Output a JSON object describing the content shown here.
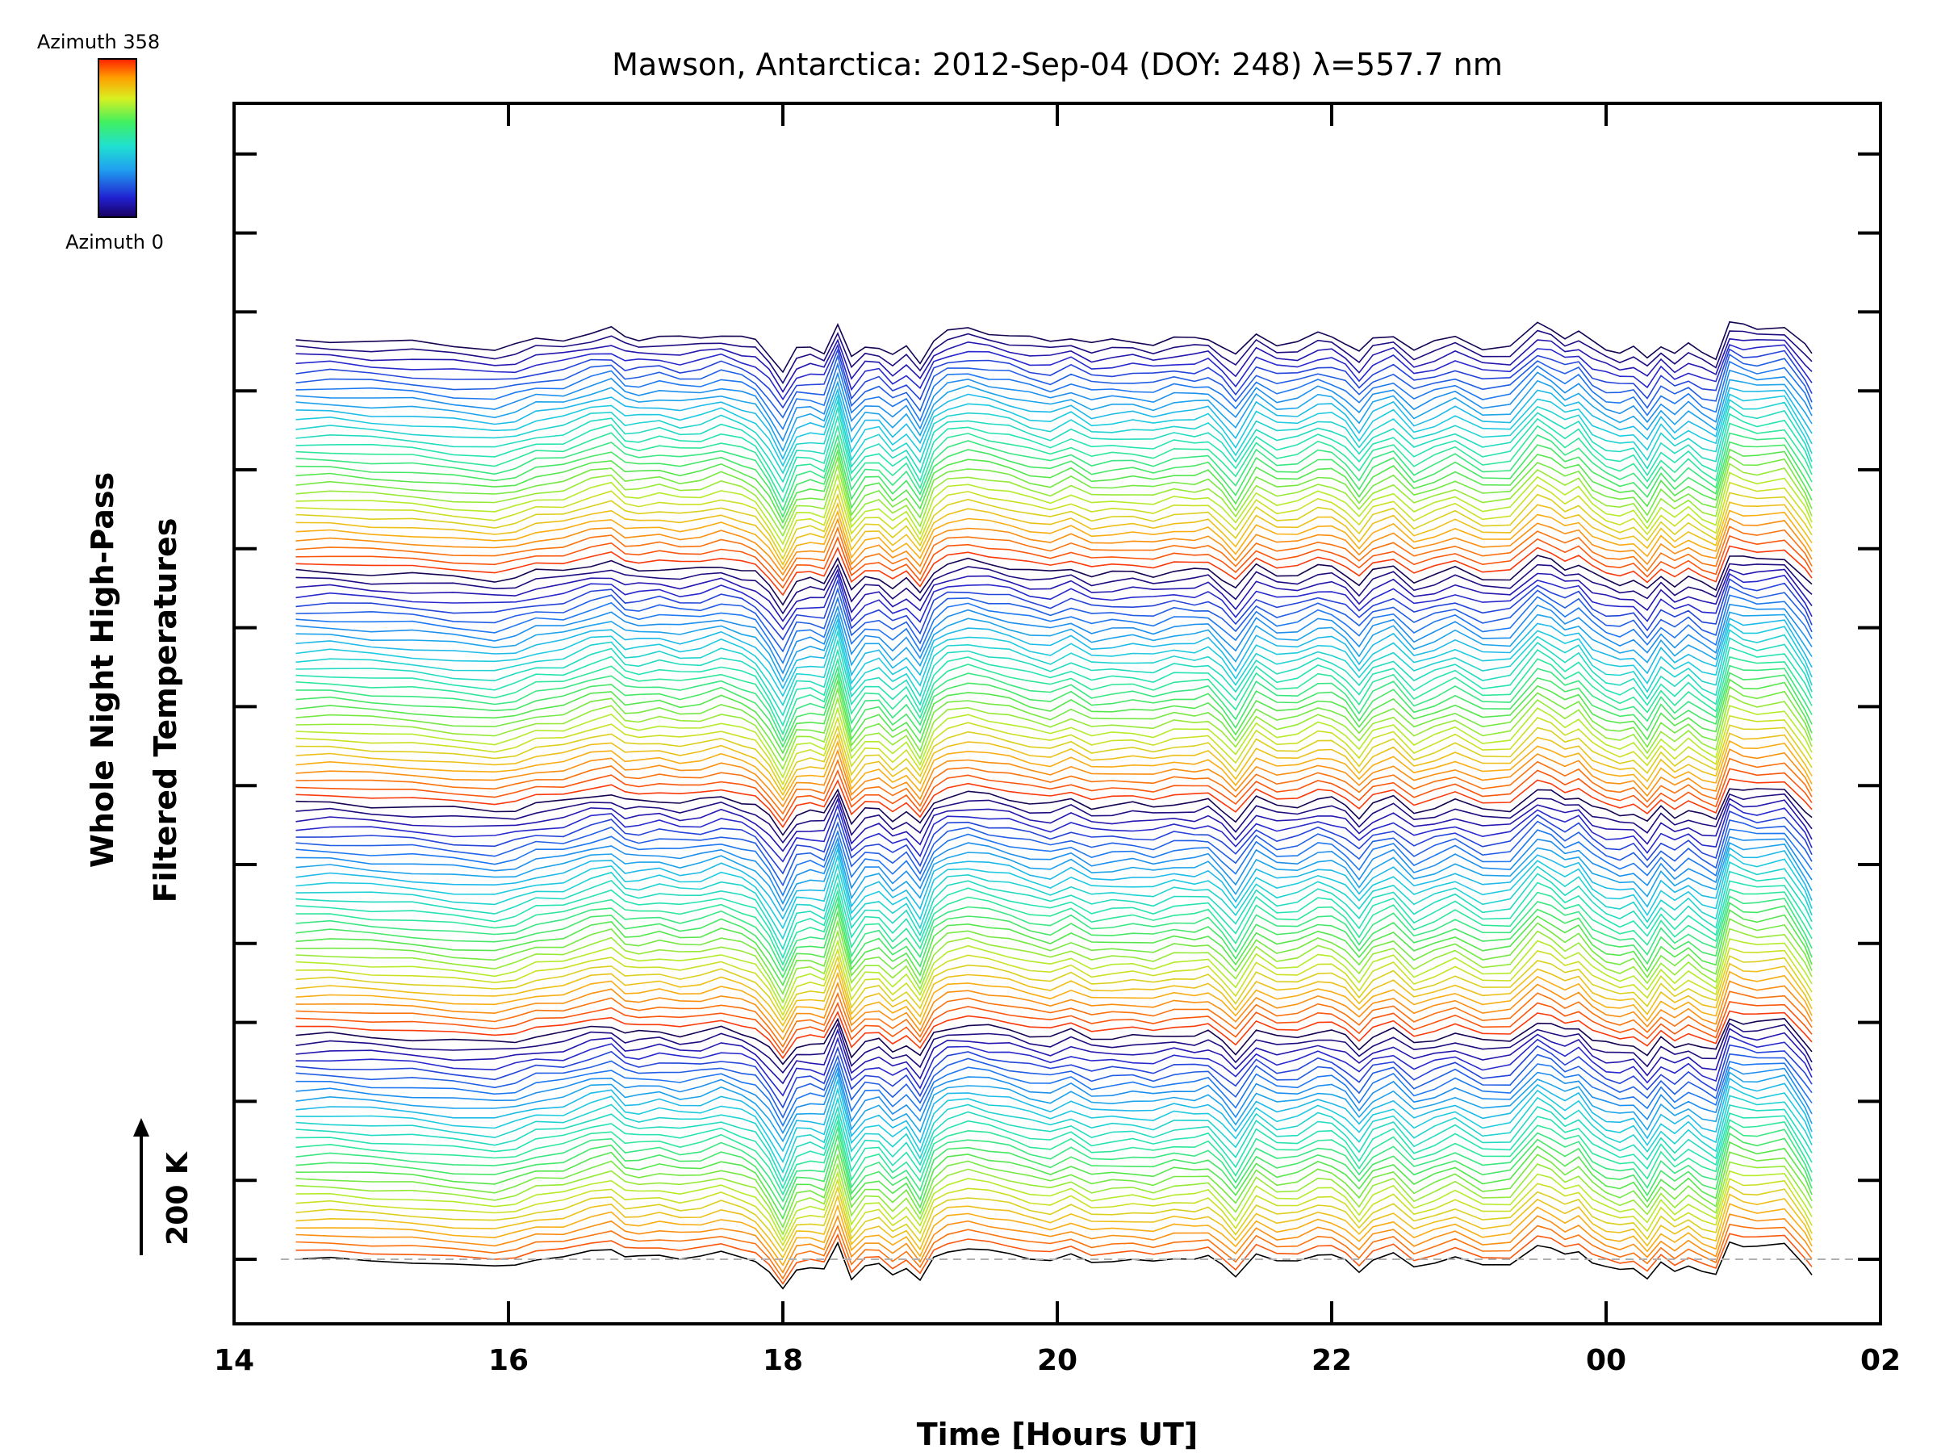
{
  "chart_data": {
    "type": "line",
    "title": "Mawson, Antarctica: 2012-Sep-04 (DOY: 248) λ=557.7 nm",
    "xlabel": "Time [Hours UT]",
    "ylabel_line1": "Whole Night High-Pass",
    "ylabel_line2": "Filtered Temperatures",
    "scale_label": "200 K",
    "x_ticks": [
      "14",
      "16",
      "18",
      "20",
      "22",
      "00",
      "02"
    ],
    "x_tick_values": [
      14,
      16,
      18,
      20,
      22,
      24,
      26
    ],
    "xlim": [
      14,
      26
    ],
    "colorbar": {
      "label_top": "Azimuth  358",
      "label_bottom": "Azimuth  0",
      "range": [
        0,
        358
      ]
    },
    "series_count": 116,
    "stack_groups": [
      {
        "start_index": 0,
        "count": 29
      },
      {
        "start_index": 29,
        "count": 29
      },
      {
        "start_index": 58,
        "count": 29
      },
      {
        "start_index": 87,
        "count": 29
      }
    ],
    "base_profile": {
      "x_hours": [
        14.45,
        14.7,
        15.0,
        15.3,
        15.6,
        15.9,
        16.05,
        16.2,
        16.4,
        16.6,
        16.75,
        16.85,
        16.95,
        17.1,
        17.25,
        17.4,
        17.55,
        17.7,
        17.8,
        17.9,
        18.0,
        18.1,
        18.2,
        18.3,
        18.4,
        18.5,
        18.6,
        18.7,
        18.8,
        18.9,
        19.0,
        19.1,
        19.2,
        19.35,
        19.5,
        19.65,
        19.8,
        19.95,
        20.1,
        20.25,
        20.4,
        20.55,
        20.7,
        20.85,
        21.0,
        21.1,
        21.2,
        21.3,
        21.45,
        21.6,
        21.75,
        21.9,
        22.0,
        22.1,
        22.2,
        22.3,
        22.45,
        22.6,
        22.75,
        22.9,
        23.1,
        23.3,
        23.5,
        23.6,
        23.7,
        23.8,
        23.9,
        24.0,
        24.1,
        24.2,
        24.3,
        24.4,
        24.5,
        24.6,
        24.7,
        24.8,
        24.9,
        25.0,
        25.1,
        25.3,
        25.45,
        25.5
      ],
      "y_kelvin": [
        0,
        2,
        -5,
        -10,
        -20,
        -28,
        -18,
        0,
        5,
        30,
        40,
        10,
        8,
        15,
        5,
        10,
        25,
        10,
        -5,
        -50,
        -110,
        -35,
        -30,
        -40,
        60,
        -70,
        -25,
        -20,
        -55,
        -30,
        -80,
        5,
        30,
        40,
        30,
        20,
        5,
        -5,
        15,
        -10,
        -5,
        -3,
        -10,
        5,
        3,
        10,
        -20,
        -60,
        20,
        -10,
        -5,
        20,
        15,
        -5,
        -45,
        0,
        20,
        -30,
        -10,
        10,
        -25,
        -20,
        55,
        40,
        15,
        30,
        -10,
        -30,
        -40,
        -30,
        -70,
        -15,
        -45,
        -20,
        -45,
        -60,
        65,
        50,
        45,
        55,
        -20,
        -55
      ],
      "jitter_scale_kelvin": 6
    },
    "series_spacing_kelvin": 22,
    "y_reference_kelvin": 0
  }
}
